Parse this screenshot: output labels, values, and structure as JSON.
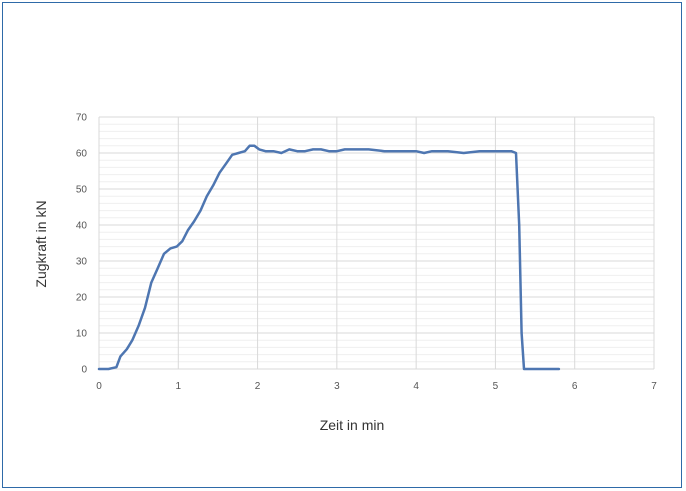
{
  "chart_data": {
    "type": "line",
    "title": "",
    "xlabel": "Zeit in min",
    "ylabel": "Zugkraft in kN",
    "xlim": [
      0,
      7
    ],
    "ylim": [
      0,
      70
    ],
    "x_ticks": [
      "0",
      "1",
      "2",
      "3",
      "4",
      "5",
      "6",
      "7"
    ],
    "y_ticks": [
      "0",
      "10",
      "20",
      "30",
      "40",
      "50",
      "60",
      "70"
    ],
    "grid": true,
    "legend": "none",
    "series": [
      {
        "color": "#4e76b1",
        "x": [
          0.0,
          0.12,
          0.22,
          0.27,
          0.35,
          0.42,
          0.5,
          0.58,
          0.66,
          0.74,
          0.82,
          0.9,
          0.98,
          1.05,
          1.12,
          1.2,
          1.28,
          1.36,
          1.44,
          1.52,
          1.6,
          1.68,
          1.76,
          1.84,
          1.9,
          1.96,
          2.02,
          2.1,
          2.2,
          2.3,
          2.4,
          2.5,
          2.6,
          2.7,
          2.8,
          2.9,
          3.0,
          3.1,
          3.2,
          3.4,
          3.6,
          3.8,
          4.0,
          4.1,
          4.2,
          4.4,
          4.6,
          4.8,
          5.0,
          5.2,
          5.26,
          5.3,
          5.33,
          5.36,
          5.5,
          5.6,
          5.8
        ],
        "values": [
          0,
          0,
          0.5,
          3.5,
          5.5,
          8,
          12,
          17,
          24,
          28,
          32,
          33.5,
          34,
          35.5,
          38.5,
          41,
          44,
          48,
          51,
          54.5,
          57,
          59.5,
          60,
          60.5,
          62,
          62,
          61,
          60.5,
          60.5,
          60,
          61,
          60.5,
          60.5,
          61,
          61,
          60.5,
          60.5,
          61,
          61,
          61,
          60.5,
          60.5,
          60.5,
          60,
          60.5,
          60.5,
          60,
          60.5,
          60.5,
          60.5,
          60,
          40,
          10,
          0,
          0,
          0,
          0
        ]
      }
    ]
  }
}
